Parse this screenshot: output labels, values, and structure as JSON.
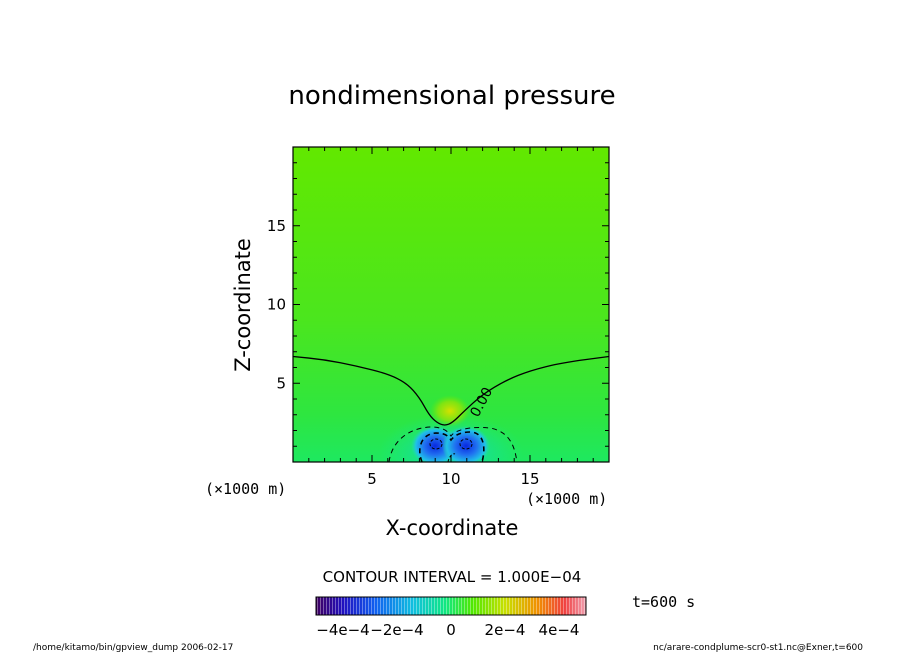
{
  "chart_data": {
    "type": "heatmap",
    "title": "nondimensional pressure",
    "xlabel": "X-coordinate",
    "ylabel": "Z-coordinate",
    "x_unit": "(×1000 m)",
    "y_unit": "(×1000 m)",
    "xlim": [
      0,
      20
    ],
    "ylim": [
      0,
      20
    ],
    "x_ticks": [
      5,
      10,
      15
    ],
    "y_ticks": [
      5,
      10,
      15
    ],
    "contour_interval_text": "CONTOUR INTERVAL = 1.000E−04",
    "contour_label": "0.00",
    "zero_contour": [
      [
        0,
        6.7
      ],
      [
        2,
        6.5
      ],
      [
        4,
        6.1
      ],
      [
        6,
        5.6
      ],
      [
        7.2,
        5.0
      ],
      [
        8,
        4.1
      ],
      [
        8.6,
        3.0
      ],
      [
        9.1,
        2.5
      ],
      [
        9.6,
        2.3
      ],
      [
        10.1,
        2.5
      ],
      [
        10.8,
        3.2
      ],
      [
        12,
        4.3
      ],
      [
        13.5,
        5.2
      ],
      [
        15,
        5.8
      ],
      [
        17,
        6.3
      ],
      [
        20,
        6.7
      ]
    ],
    "colorbar": {
      "tick_labels": [
        "−4e−4",
        "−2e−4",
        "0",
        "2e−4",
        "4e−4"
      ],
      "range": [
        -0.0005,
        0.0005
      ]
    },
    "time_label": "t=600 s"
  },
  "footer": {
    "left": "/home/kitamo/bin/gpview_dump  2006-02-17",
    "right": "nc/arare-condplume-scr0-st1.nc@Exner,t=600"
  },
  "colors": {
    "field_background": "#5ee800",
    "low_anomaly": "#1530d8",
    "high_anomaly": "#c0e000"
  }
}
